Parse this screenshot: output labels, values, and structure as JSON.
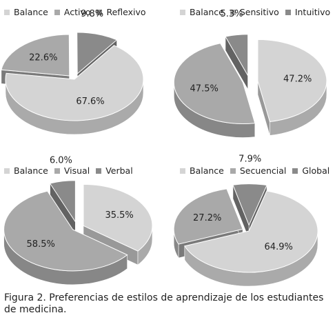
{
  "caption": "Figura 2. Preferencias de estilos de aprendizaje de los estudiantes de medicina.",
  "colors": {
    "light": "#d4d4d4",
    "mid": "#a9a9a9",
    "dark": "#8a8a8a"
  },
  "chart_data": [
    {
      "type": "pie",
      "legend": [
        "Balance",
        "Activo",
        "Reflexivo"
      ],
      "legend_position": "top-left",
      "series": [
        {
          "values": [
            67.6,
            22.6,
            9.8
          ],
          "labels": [
            "67.6%",
            "22.6%",
            "9.8%"
          ]
        }
      ]
    },
    {
      "type": "pie",
      "legend": [
        "Balance",
        "Sensitivo",
        "Intuitivo"
      ],
      "legend_position": "top-right",
      "series": [
        {
          "values": [
            47.2,
            47.5,
            5.3
          ],
          "labels": [
            "47.2%",
            "47.5%",
            "5.3%"
          ]
        }
      ]
    },
    {
      "type": "pie",
      "legend": [
        "Balance",
        "Visual",
        "Verbal"
      ],
      "legend_position": "bottom-left",
      "series": [
        {
          "values": [
            35.5,
            58.5,
            6.0
          ],
          "labels": [
            "35.5%",
            "58.5%",
            "6.0%"
          ]
        }
      ]
    },
    {
      "type": "pie",
      "legend": [
        "Balance",
        "Secuencial",
        "Global"
      ],
      "legend_position": "bottom-right",
      "series": [
        {
          "values": [
            64.9,
            27.2,
            7.9
          ],
          "labels": [
            "64.9%",
            "27.2%",
            "7.9%"
          ]
        }
      ]
    }
  ]
}
